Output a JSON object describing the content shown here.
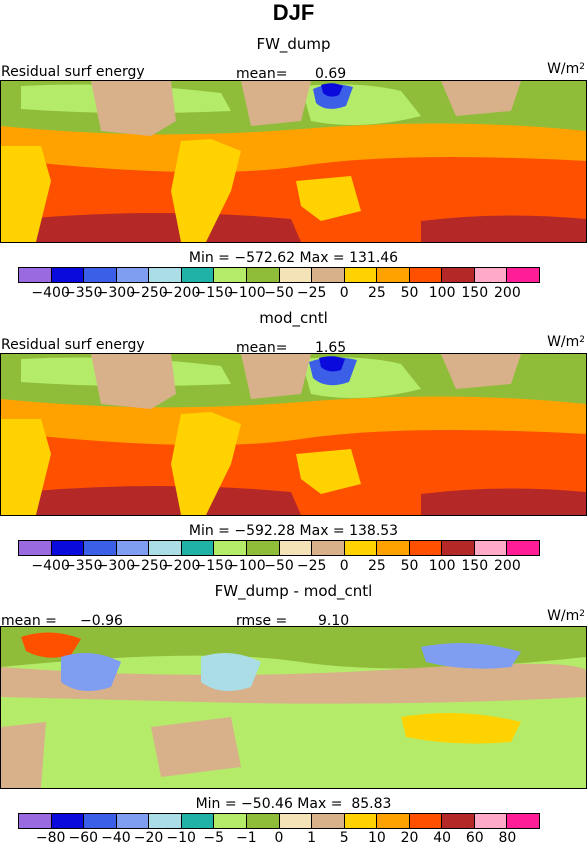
{
  "title": "DJF",
  "units": "W/m",
  "units_sup": "2",
  "chart_data": [
    {
      "type": "heatmap",
      "title": "FW_dump",
      "field_label": "Residual surf energy",
      "stat_label": "mean=",
      "stat_value": "0.69",
      "min_max": "Min = −572.62 Max = 131.46",
      "min": -572.62,
      "max": 131.46,
      "mean": 0.69,
      "levels": [
        "−400",
        "−350",
        "−300",
        "−250",
        "−200",
        "−150",
        "−100",
        "−50",
        "−25",
        "0",
        "25",
        "50",
        "100",
        "150",
        "200"
      ],
      "colors": [
        "#9a6ae0",
        "#0a0adc",
        "#3b5fe6",
        "#7f9ef2",
        "#aadde6",
        "#20b2a6",
        "#b4ec6a",
        "#8fbd3a",
        "#f5e3b8",
        "#d8b08a",
        "#ffd200",
        "#ffa200",
        "#ff5000",
        "#b42828",
        "#ffaac8",
        "#ff1e96"
      ]
    },
    {
      "type": "heatmap",
      "title": "mod_cntl",
      "field_label": "Residual surf energy",
      "stat_label": "mean=",
      "stat_value": "1.65",
      "min_max": "Min = −592.28 Max = 138.53",
      "min": -592.28,
      "max": 138.53,
      "mean": 1.65,
      "levels": [
        "−400",
        "−350",
        "−300",
        "−250",
        "−200",
        "−150",
        "−100",
        "−50",
        "−25",
        "0",
        "25",
        "50",
        "100",
        "150",
        "200"
      ],
      "colors": [
        "#9a6ae0",
        "#0a0adc",
        "#3b5fe6",
        "#7f9ef2",
        "#aadde6",
        "#20b2a6",
        "#b4ec6a",
        "#8fbd3a",
        "#f5e3b8",
        "#d8b08a",
        "#ffd200",
        "#ffa200",
        "#ff5000",
        "#b42828",
        "#ffaac8",
        "#ff1e96"
      ]
    },
    {
      "type": "heatmap",
      "title": "FW_dump - mod_cntl",
      "left_label": "mean =",
      "left_value": "−0.96",
      "stat_label": "rmse =",
      "stat_value": "9.10",
      "min_max": "Min = −50.46 Max =  85.83",
      "min": -50.46,
      "max": 85.83,
      "mean": -0.96,
      "rmse": 9.1,
      "levels": [
        "−80",
        "−60",
        "−40",
        "−20",
        "−10",
        "−5",
        "−1",
        "0",
        "1",
        "5",
        "10",
        "20",
        "40",
        "60",
        "80"
      ],
      "colors": [
        "#9a6ae0",
        "#0a0adc",
        "#3b5fe6",
        "#7f9ef2",
        "#aadde6",
        "#20b2a6",
        "#b4ec6a",
        "#8fbd3a",
        "#f5e3b8",
        "#d8b08a",
        "#ffd200",
        "#ffa200",
        "#ff5000",
        "#b42828",
        "#ffaac8",
        "#ff1e96"
      ]
    }
  ]
}
